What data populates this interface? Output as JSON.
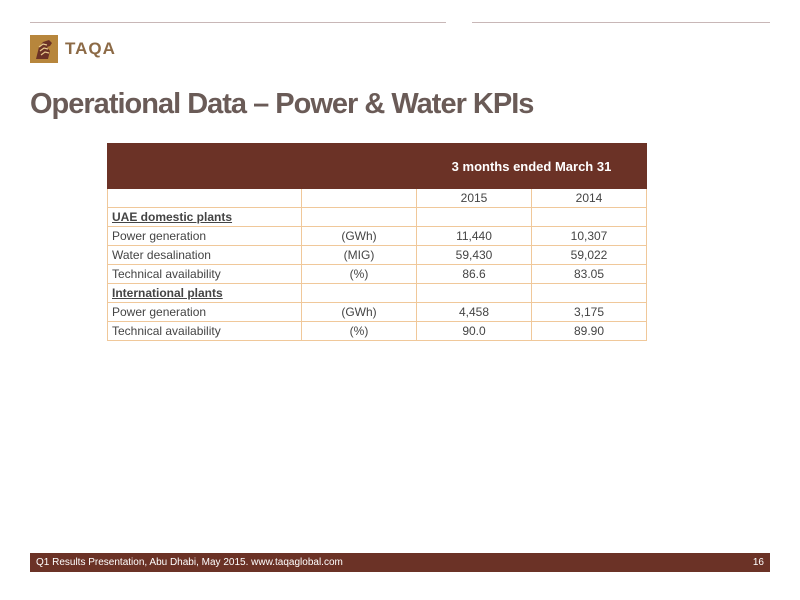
{
  "brand": {
    "name": "TAQA",
    "icon": "taqa-horse-logo-icon",
    "color": "#b7863c"
  },
  "title": "Operational Data – Power & Water KPIs",
  "table": {
    "period_header": "3 months ended March 31",
    "years": [
      "2015",
      "2014"
    ],
    "sections": [
      {
        "heading": "UAE domestic plants",
        "rows": [
          {
            "label": "Power generation",
            "unit": "(GWh)",
            "values": [
              "11,440",
              "10,307"
            ]
          },
          {
            "label": "Water desalination",
            "unit": "(MIG)",
            "values": [
              "59,430",
              "59,022"
            ]
          },
          {
            "label": "Technical availability",
            "unit": "(%)",
            "values": [
              "86.6",
              "83.05"
            ]
          }
        ]
      },
      {
        "heading": "International plants",
        "rows": [
          {
            "label": "Power generation",
            "unit": "(GWh)",
            "values": [
              "4,458",
              "3,175"
            ]
          },
          {
            "label": "Technical availability",
            "unit": "(%)",
            "values": [
              "90.0",
              "89.90"
            ]
          }
        ]
      }
    ]
  },
  "footer": {
    "text": "Q1 Results Presentation, Abu Dhabi, May 2015. www.taqaglobal.com",
    "page_number": "16"
  },
  "colors": {
    "accent": "#6b3226",
    "table_border": "#f0c89a",
    "title": "#6a5b57"
  }
}
